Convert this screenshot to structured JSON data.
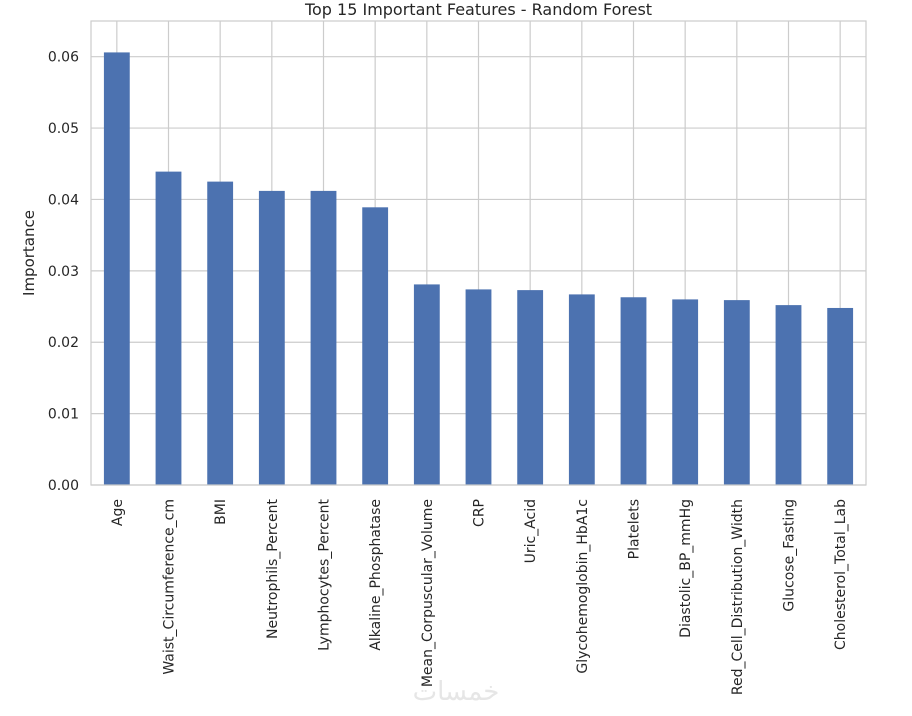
{
  "chart_data": {
    "type": "bar",
    "title": "Top 15 Important Features - Random Forest",
    "xlabel": "",
    "ylabel": "Importance",
    "categories": [
      "Age",
      "Waist_Circumference_cm",
      "BMI",
      "Neutrophils_Percent",
      "Lymphocytes_Percent",
      "Alkaline_Phosphatase",
      "Mean_Corpuscular_Volume",
      "CRP",
      "Uric_Acid",
      "Glycohemoglobin_HbA1c",
      "Platelets",
      "Diastolic_BP_mmHg",
      "Red_Cell_Distribution_Width",
      "Glucose_Fasting",
      "Cholesterol_Total_Lab"
    ],
    "values": [
      0.0606,
      0.0439,
      0.0425,
      0.0412,
      0.0412,
      0.0389,
      0.0281,
      0.0274,
      0.0273,
      0.0267,
      0.0263,
      0.026,
      0.0259,
      0.0252,
      0.0248
    ],
    "ylim": [
      0,
      0.065
    ],
    "yticks": [
      "0.00",
      "0.01",
      "0.02",
      "0.03",
      "0.04",
      "0.05",
      "0.06"
    ],
    "grid": true,
    "bar_color": "#4c72b0",
    "grid_color": "#cccccc"
  },
  "watermark": "خمسات"
}
